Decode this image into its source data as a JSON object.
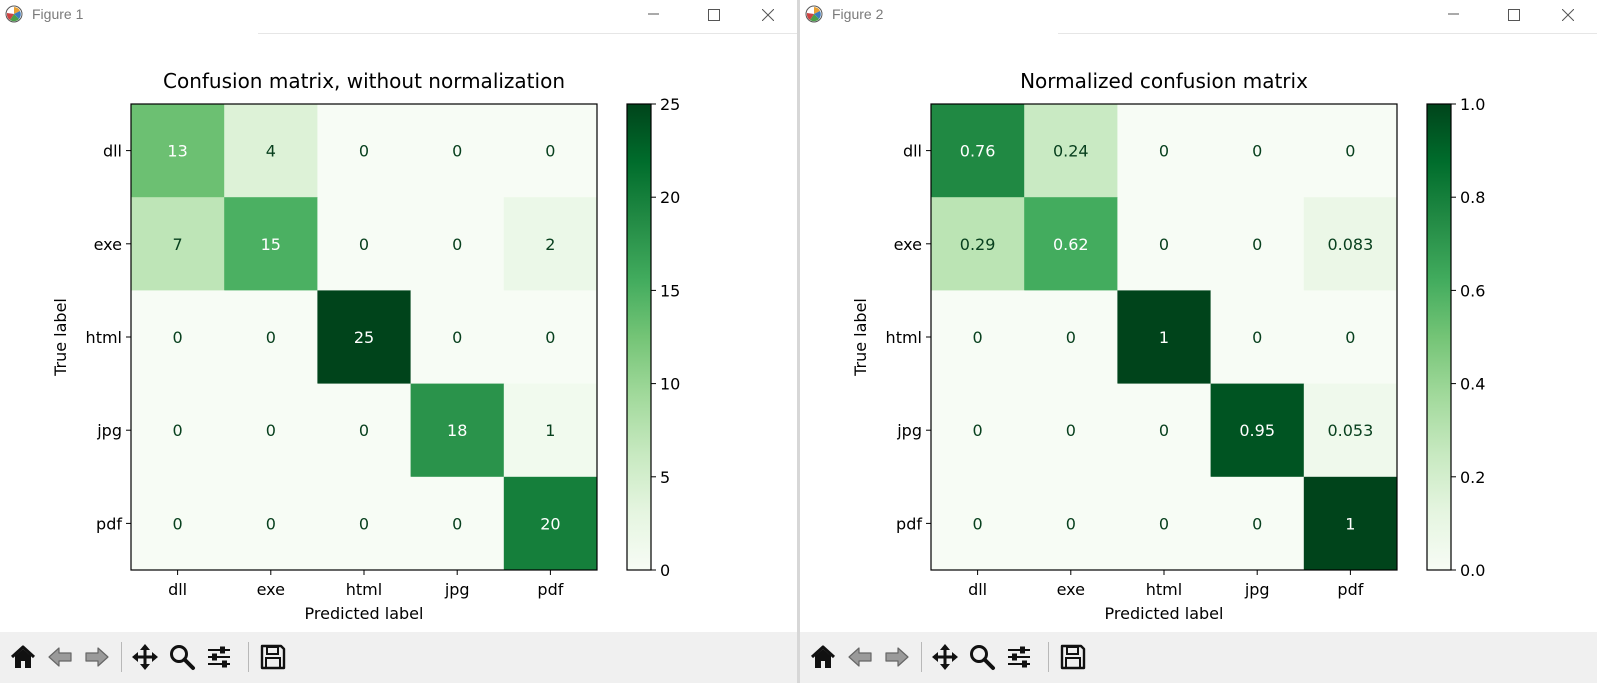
{
  "windows": [
    {
      "title": "Figure 1",
      "chart_data": {
        "type": "heatmap",
        "title": "Confusion matrix, without normalization",
        "xlabel": "Predicted label",
        "ylabel": "True label",
        "x_categories": [
          "dll",
          "exe",
          "html",
          "jpg",
          "pdf"
        ],
        "y_categories": [
          "dll",
          "exe",
          "html",
          "jpg",
          "pdf"
        ],
        "values": [
          [
            13,
            4,
            0,
            0,
            0
          ],
          [
            7,
            15,
            0,
            0,
            2
          ],
          [
            0,
            0,
            25,
            0,
            0
          ],
          [
            0,
            0,
            0,
            18,
            1
          ],
          [
            0,
            0,
            0,
            0,
            20
          ]
        ],
        "cell_labels": [
          [
            "13",
            "4",
            "0",
            "0",
            "0"
          ],
          [
            "7",
            "15",
            "0",
            "0",
            "2"
          ],
          [
            "0",
            "0",
            "25",
            "0",
            "0"
          ],
          [
            "0",
            "0",
            "0",
            "18",
            "1"
          ],
          [
            "0",
            "0",
            "0",
            "0",
            "20"
          ]
        ],
        "colorbar": {
          "min": 0,
          "max": 25,
          "ticks": [
            0,
            5,
            10,
            15,
            20,
            25
          ],
          "tick_labels": [
            "0",
            "5",
            "10",
            "15",
            "20",
            "25"
          ]
        },
        "colormap": "Greens"
      }
    },
    {
      "title": "Figure 2",
      "chart_data": {
        "type": "heatmap",
        "title": "Normalized confusion matrix",
        "xlabel": "Predicted label",
        "ylabel": "True label",
        "x_categories": [
          "dll",
          "exe",
          "html",
          "jpg",
          "pdf"
        ],
        "y_categories": [
          "dll",
          "exe",
          "html",
          "jpg",
          "pdf"
        ],
        "values": [
          [
            0.76,
            0.24,
            0,
            0,
            0
          ],
          [
            0.29,
            0.62,
            0,
            0,
            0.083
          ],
          [
            0,
            0,
            1,
            0,
            0
          ],
          [
            0,
            0,
            0,
            0.95,
            0.053
          ],
          [
            0,
            0,
            0,
            0,
            1
          ]
        ],
        "cell_labels": [
          [
            "0.76",
            "0.24",
            "0",
            "0",
            "0"
          ],
          [
            "0.29",
            "0.62",
            "0",
            "0",
            "0.083"
          ],
          [
            "0",
            "0",
            "1",
            "0",
            "0"
          ],
          [
            "0",
            "0",
            "0",
            "0.95",
            "0.053"
          ],
          [
            "0",
            "0",
            "0",
            "0",
            "1"
          ]
        ],
        "colorbar": {
          "min": 0,
          "max": 1,
          "ticks": [
            0,
            0.2,
            0.4,
            0.6,
            0.8,
            1.0
          ],
          "tick_labels": [
            "0.0",
            "0.2",
            "0.4",
            "0.6",
            "0.8",
            "1.0"
          ]
        },
        "colormap": "Greens"
      }
    }
  ],
  "toolbar": {
    "tools": [
      {
        "name": "home",
        "icon": "home-icon"
      },
      {
        "name": "back",
        "icon": "back-arrow-icon"
      },
      {
        "name": "forward",
        "icon": "forward-arrow-icon"
      },
      {
        "name": "pan",
        "icon": "pan-move-icon"
      },
      {
        "name": "zoom",
        "icon": "zoom-magnifier-icon"
      },
      {
        "name": "configure-subplots",
        "icon": "sliders-icon"
      },
      {
        "name": "save",
        "icon": "floppy-disk-icon"
      }
    ]
  },
  "colors": {
    "greens_low": "#f7fcf5",
    "greens_high": "#00441b",
    "title_text": "#7a7a7a",
    "toolbar_bg": "#f0f0f0"
  }
}
